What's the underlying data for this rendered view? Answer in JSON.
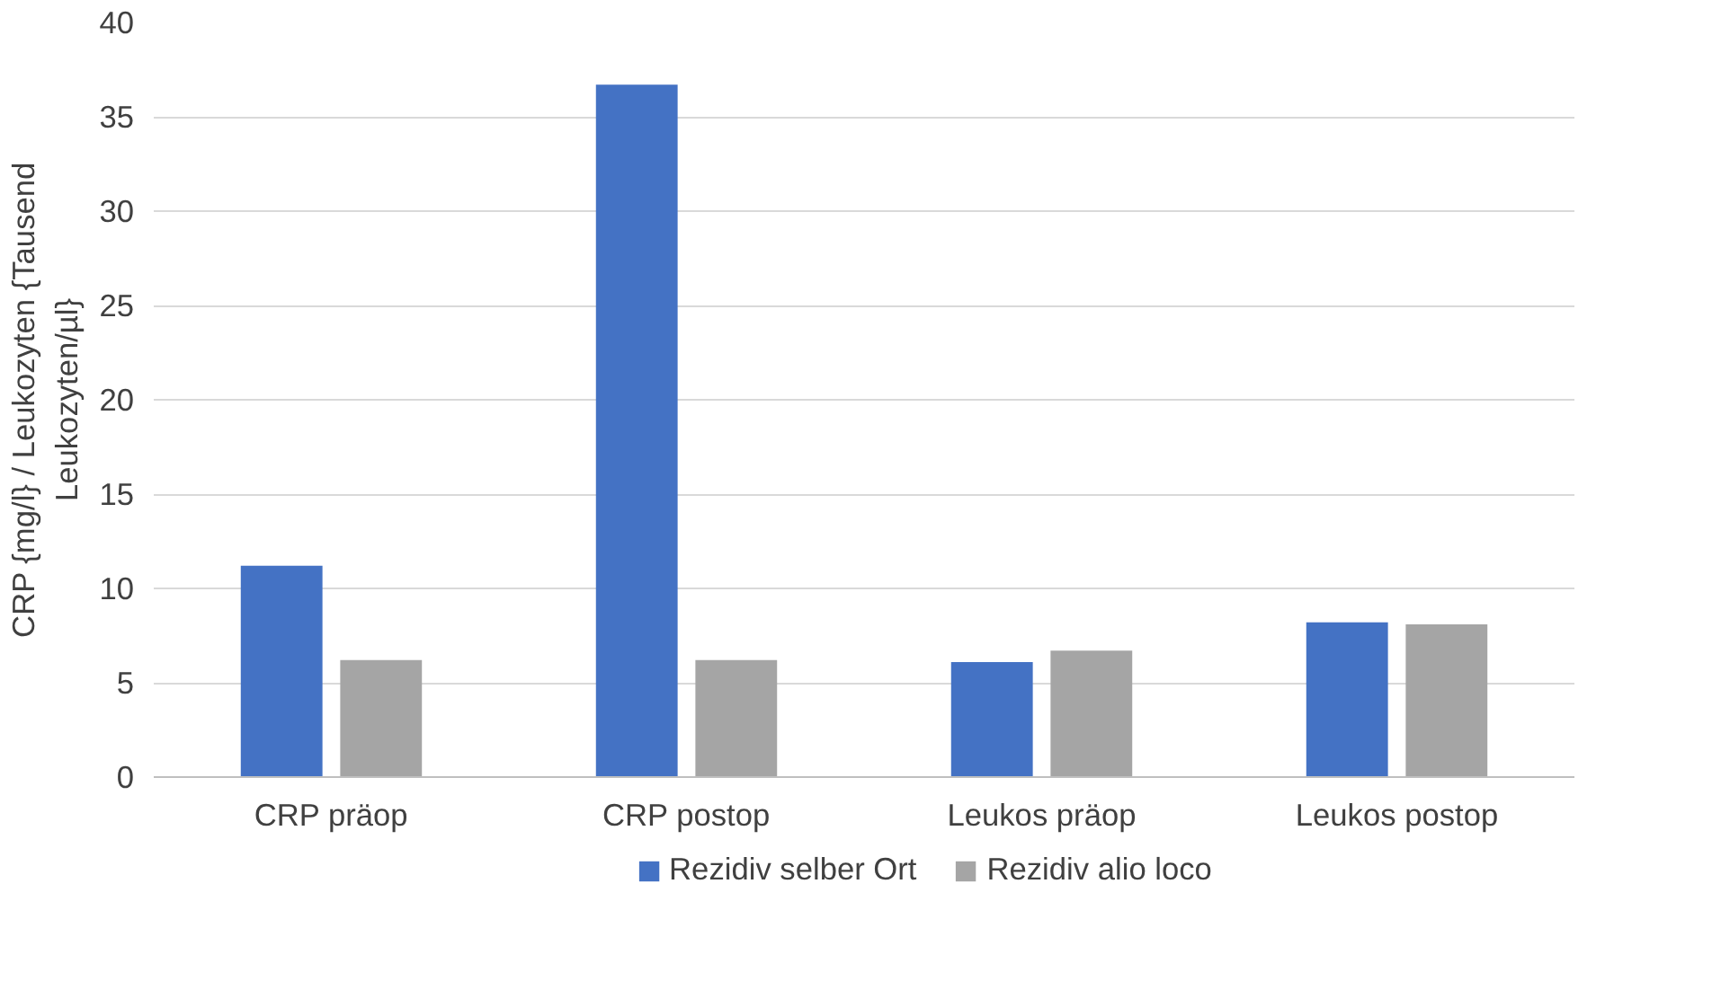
{
  "chart_data": {
    "type": "bar",
    "ylabel": "CRP {mg/l} / Leukozyten {Tausend Leukozyten/µl}",
    "categories": [
      "CRP präop",
      "CRP postop",
      "Leukos präop",
      "Leukos postop"
    ],
    "series": [
      {
        "name": "Rezidiv selber Ort",
        "color": "#4472c4",
        "values": [
          11.2,
          36.7,
          6.1,
          8.2
        ]
      },
      {
        "name": "Rezidiv alio loco",
        "color": "#a5a5a5",
        "values": [
          6.2,
          6.2,
          6.7,
          8.1
        ]
      }
    ],
    "ylim": [
      0,
      40
    ],
    "yticks": [
      0,
      5,
      10,
      15,
      20,
      25,
      30,
      35,
      40
    ],
    "grid": "y",
    "legend": "bottom"
  }
}
